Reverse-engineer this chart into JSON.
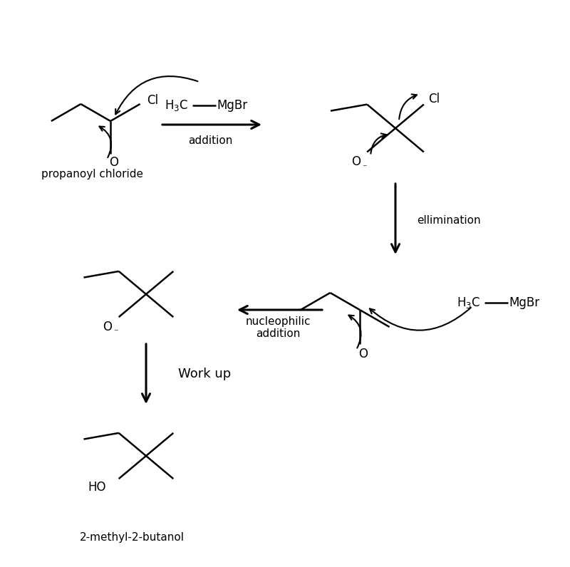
{
  "background": "#ffffff",
  "labels": {
    "propanoyl_chloride": "propanoyl chloride",
    "product": "2-methyl-2-butanol",
    "addition": "addition",
    "ellimination": "ellimination",
    "nucleophilic_addition": "nucleophilic\naddition",
    "work_up": "Work up"
  },
  "colors": {
    "black": "#000000",
    "white": "#ffffff"
  },
  "font_size": 11,
  "bond_lw": 1.8,
  "arrow_lw": 2.2
}
